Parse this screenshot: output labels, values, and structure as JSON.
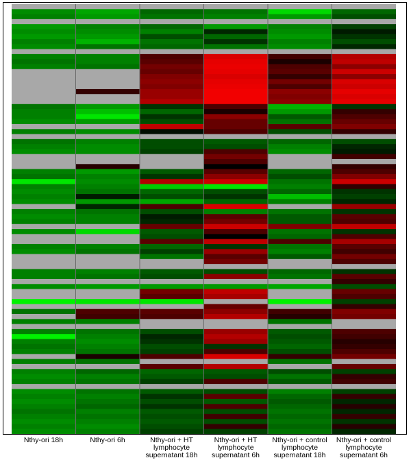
{
  "chart_data": {
    "type": "heatmap",
    "title": "",
    "xlabel": "",
    "ylabel": "",
    "columns": [
      "Nthy-ori 18h",
      "Nthy-ori 6h",
      "Nthy-ori + HT lymphocyte supernatant 18h",
      "Nthy-ori + HT lymphocyte supernatant 6h",
      "Nthy-ori + control lymphocyte supernatant 18h",
      "Nthy-ori + control lymphocyte supernatant 6h"
    ],
    "colormap": {
      "negative": "#00ff00",
      "zero": "#000000",
      "positive": "#ff0000",
      "missing": "#a8a8a8"
    },
    "value_scale": "−1 (bright green) … 0 (black) … +1 (bright red); null = missing (grey)",
    "values": [
      [
        null,
        null,
        null,
        null,
        null,
        null
      ],
      [
        -0.55,
        -0.65,
        -0.4,
        -0.45,
        -0.85,
        -0.4
      ],
      [
        -0.5,
        -0.6,
        -0.45,
        -0.5,
        -0.6,
        -0.3
      ],
      [
        null,
        null,
        null,
        null,
        null,
        null
      ],
      [
        -0.6,
        -0.5,
        -0.4,
        -0.6,
        -0.5,
        -0.25
      ],
      [
        -0.55,
        -0.55,
        -0.5,
        -0.15,
        -0.55,
        -0.1
      ],
      [
        -0.6,
        -0.6,
        -0.3,
        -0.4,
        -0.6,
        -0.2
      ],
      [
        -0.5,
        -0.7,
        -0.45,
        -0.2,
        -0.5,
        -0.3
      ],
      [
        -0.55,
        -0.45,
        -0.4,
        -0.45,
        -0.55,
        -0.15
      ],
      [
        null,
        null,
        null,
        null,
        null,
        null
      ],
      [
        -0.5,
        -0.5,
        0.3,
        0.85,
        0.25,
        0.7
      ],
      [
        -0.45,
        -0.5,
        0.35,
        0.9,
        0.1,
        0.75
      ],
      [
        -0.5,
        -0.45,
        0.45,
        0.92,
        0.3,
        0.55
      ],
      [
        null,
        null,
        0.4,
        0.9,
        0.35,
        0.8
      ],
      [
        null,
        null,
        0.5,
        0.85,
        0.2,
        0.55
      ],
      [
        null,
        null,
        0.55,
        0.9,
        0.45,
        0.85
      ],
      [
        null,
        null,
        0.5,
        0.92,
        0.3,
        0.8
      ],
      [
        null,
        0.2,
        0.6,
        0.95,
        0.55,
        0.9
      ],
      [
        null,
        null,
        0.6,
        0.95,
        0.5,
        0.85
      ],
      [
        null,
        null,
        0.7,
        0.95,
        0.55,
        0.9
      ],
      [
        -0.45,
        -0.6,
        -0.2,
        0.3,
        -0.7,
        -0.2
      ],
      [
        -0.5,
        -0.75,
        -0.4,
        0.1,
        -0.6,
        0.2
      ],
      [
        -0.5,
        -0.9,
        -0.2,
        0.55,
        -0.35,
        0.3
      ],
      [
        -0.55,
        -0.6,
        -0.3,
        0.4,
        -0.45,
        0.4
      ],
      [
        null,
        null,
        0.75,
        0.4,
        0.35,
        0.5
      ],
      [
        -0.5,
        -0.55,
        -0.05,
        0.3,
        -0.3,
        0.2
      ],
      [
        null,
        null,
        null,
        null,
        null,
        null
      ],
      [
        -0.45,
        -0.5,
        -0.3,
        -0.35,
        -0.4,
        -0.3
      ],
      [
        -0.5,
        -0.55,
        -0.3,
        -0.3,
        -0.5,
        -0.15
      ],
      [
        -0.55,
        -0.55,
        -0.25,
        0.3,
        -0.55,
        -0.1
      ],
      [
        null,
        null,
        null,
        0.45,
        null,
        0.25
      ],
      [
        null,
        null,
        null,
        0.3,
        null,
        null
      ],
      [
        null,
        0.15,
        null,
        0.0,
        null,
        0.2
      ],
      [
        -0.5,
        -0.6,
        -0.35,
        0.35,
        -0.4,
        0.3
      ],
      [
        -0.45,
        -0.5,
        -0.2,
        0.55,
        -0.3,
        0.5
      ],
      [
        -0.9,
        -0.55,
        0.7,
        0.8,
        -0.45,
        0.8
      ],
      [
        -0.5,
        -0.5,
        -0.8,
        -0.9,
        -0.5,
        0.2
      ],
      [
        -0.55,
        -0.45,
        -0.4,
        -0.3,
        -0.4,
        -0.2
      ],
      [
        -0.5,
        -0.1,
        -0.3,
        -0.2,
        -0.75,
        -0.25
      ],
      [
        -0.55,
        -0.6,
        -0.65,
        -0.4,
        -0.5,
        -0.15
      ],
      [
        null,
        -0.15,
        0.3,
        0.85,
        null,
        0.6
      ],
      [
        -0.5,
        -0.45,
        -0.3,
        -0.5,
        -0.45,
        -0.2
      ],
      [
        -0.55,
        -0.5,
        -0.1,
        0.35,
        -0.35,
        0.35
      ],
      [
        -0.5,
        -0.5,
        -0.15,
        0.45,
        -0.35,
        0.3
      ],
      [
        null,
        null,
        0.4,
        0.8,
        0.5,
        0.75
      ],
      [
        -0.55,
        -0.85,
        -0.35,
        0.3,
        -0.45,
        -0.2
      ],
      [
        null,
        null,
        -0.3,
        0.0,
        -0.4,
        0.3
      ],
      [
        null,
        null,
        0.35,
        0.75,
        0.3,
        0.65
      ],
      [
        -0.5,
        -0.5,
        -0.4,
        -0.2,
        -0.45,
        0.35
      ],
      [
        -0.55,
        -0.45,
        -0.25,
        0.6,
        -0.5,
        0.25
      ],
      [
        null,
        null,
        -0.45,
        0.35,
        -0.35,
        0.45
      ],
      [
        null,
        null,
        null,
        0.45,
        null,
        0.3
      ],
      [
        null,
        null,
        null,
        null,
        null,
        null
      ],
      [
        -0.5,
        -0.5,
        -0.35,
        -0.3,
        -0.4,
        -0.2
      ],
      [
        -0.5,
        -0.45,
        -0.3,
        0.55,
        -0.45,
        0.35
      ],
      [
        null,
        null,
        null,
        null,
        null,
        0.2
      ],
      [
        -0.55,
        -0.6,
        -0.6,
        -0.6,
        -0.65,
        -0.3
      ],
      [
        null,
        null,
        0.45,
        0.75,
        null,
        0.4
      ],
      [
        null,
        null,
        0.35,
        0.65,
        null,
        0.3
      ],
      [
        -0.95,
        -0.9,
        -0.9,
        null,
        -0.95,
        -0.25
      ],
      [
        null,
        null,
        null,
        0.4,
        null,
        0.2
      ],
      [
        -0.45,
        0.3,
        0.35,
        0.55,
        0.25,
        0.5
      ],
      [
        null,
        0.25,
        0.3,
        0.7,
        0.15,
        0.45
      ],
      [
        -0.5,
        -0.5,
        null,
        null,
        -0.45,
        null
      ],
      [
        null,
        null,
        null,
        null,
        null,
        null
      ],
      [
        -0.5,
        -0.45,
        -0.3,
        0.6,
        -0.35,
        0.3
      ],
      [
        -0.95,
        -0.5,
        -0.15,
        0.7,
        -0.3,
        0.25
      ],
      [
        -0.5,
        -0.55,
        -0.2,
        0.6,
        -0.35,
        0.15
      ],
      [
        -0.45,
        -0.5,
        -0.3,
        -0.2,
        -0.4,
        0.2
      ],
      [
        -0.5,
        -0.45,
        -0.25,
        0.3,
        -0.3,
        0.3
      ],
      [
        null,
        0.1,
        0.3,
        0.85,
        0.2,
        0.45
      ],
      [
        -0.5,
        -0.45,
        null,
        null,
        -0.45,
        null
      ],
      [
        null,
        null,
        0.35,
        0.7,
        null,
        0.4
      ],
      [
        -0.5,
        -0.4,
        -0.4,
        -0.35,
        -0.3,
        -0.25
      ],
      [
        -0.55,
        -0.5,
        -0.35,
        -0.3,
        -0.45,
        0.2
      ],
      [
        -0.5,
        -0.45,
        -0.25,
        0.3,
        -0.35,
        0.25
      ],
      [
        null,
        null,
        null,
        null,
        null,
        null
      ],
      [
        -0.55,
        -0.45,
        -0.35,
        -0.3,
        -0.5,
        -0.25
      ],
      [
        -0.5,
        -0.5,
        -0.2,
        0.35,
        -0.4,
        0.2
      ],
      [
        -0.55,
        -0.45,
        -0.3,
        -0.35,
        -0.35,
        -0.15
      ],
      [
        -0.5,
        -0.4,
        -0.2,
        0.3,
        -0.4,
        0.15
      ],
      [
        -0.45,
        -0.5,
        -0.35,
        -0.3,
        -0.45,
        -0.15
      ],
      [
        -0.5,
        -0.45,
        -0.3,
        0.25,
        -0.4,
        0.2
      ],
      [
        -0.55,
        -0.5,
        -0.35,
        -0.3,
        -0.45,
        -0.2
      ],
      [
        -0.5,
        -0.55,
        -0.3,
        0.2,
        -0.4,
        0.15
      ],
      [
        -0.55,
        -0.5,
        -0.25,
        -0.25,
        -0.45,
        -0.15
      ]
    ]
  }
}
